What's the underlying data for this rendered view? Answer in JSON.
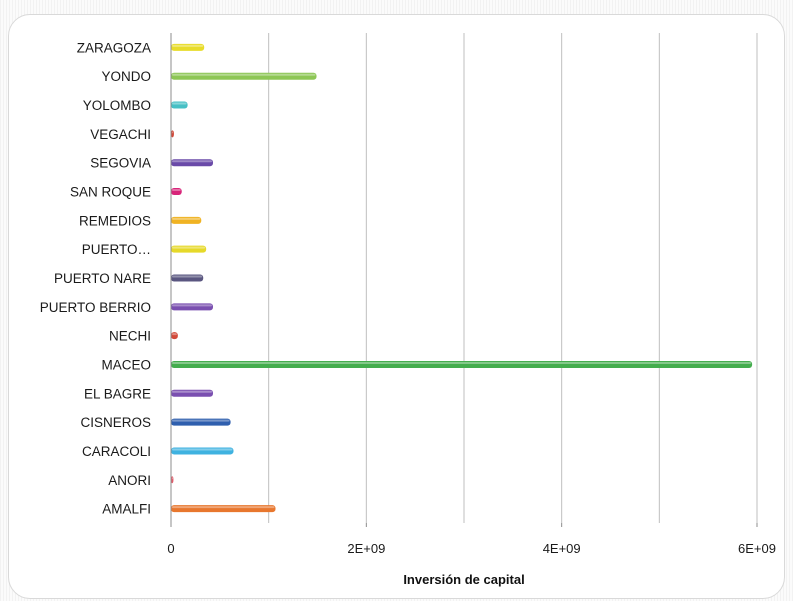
{
  "chart_data": {
    "type": "bar",
    "orientation": "horizontal",
    "categories": [
      "AMALFI",
      "ANORI",
      "CARACOLI",
      "CISNEROS",
      "EL BAGRE",
      "MACEO",
      "NECHI",
      "PUERTO BERRIO",
      "PUERTO NARE",
      "PUERTO…",
      "REMEDIOS",
      "SAN ROQUE",
      "SEGOVIA",
      "VEGACHI",
      "YOLOMBO",
      "YONDO",
      "ZARAGOZA"
    ],
    "values": [
      1070000000,
      25000000,
      640000000,
      610000000,
      430000000,
      5950000000,
      70000000,
      430000000,
      330000000,
      360000000,
      310000000,
      110000000,
      430000000,
      30000000,
      170000000,
      1490000000,
      340000000
    ],
    "bar_colors": [
      "#e8772e",
      "#e05c6a",
      "#3fb2e0",
      "#2f5fae",
      "#7a4fb0",
      "#44ad4e",
      "#d24a3a",
      "#7a4fb0",
      "#5a5680",
      "#e6d92a",
      "#f0b323",
      "#d8257a",
      "#6a4aa8",
      "#d04a3a",
      "#47c0c5",
      "#8dc655",
      "#e8dc2a"
    ],
    "title": "",
    "xlabel": "Inversión de capital",
    "ylabel": "",
    "xlim": [
      0,
      6000000000
    ],
    "x_ticks": [
      0,
      2000000000,
      4000000000,
      6000000000
    ],
    "x_tick_labels": [
      "0",
      "2E+09",
      "4E+09",
      "6E+09"
    ],
    "grid": true,
    "legend": "none"
  }
}
